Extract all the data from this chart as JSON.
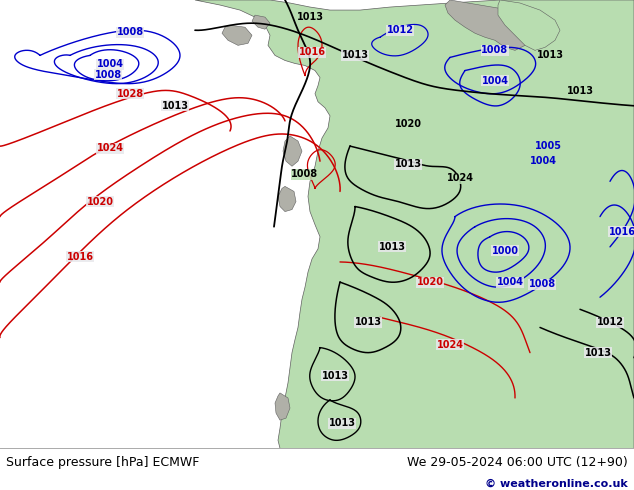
{
  "title_left": "Surface pressure [hPa] ECMWF",
  "title_right": "We 29-05-2024 06:00 UTC (12+90)",
  "copyright": "© weatheronline.co.uk",
  "bg_ocean": "#e8e8ec",
  "land_green": "#b8ddb0",
  "land_gray": "#b0b0a8",
  "footer_bg": "#ffffff",
  "footer_text_color": "#000000",
  "footer_copyright_color": "#00008b",
  "black": "#000000",
  "blue": "#0000cc",
  "red": "#cc0000"
}
